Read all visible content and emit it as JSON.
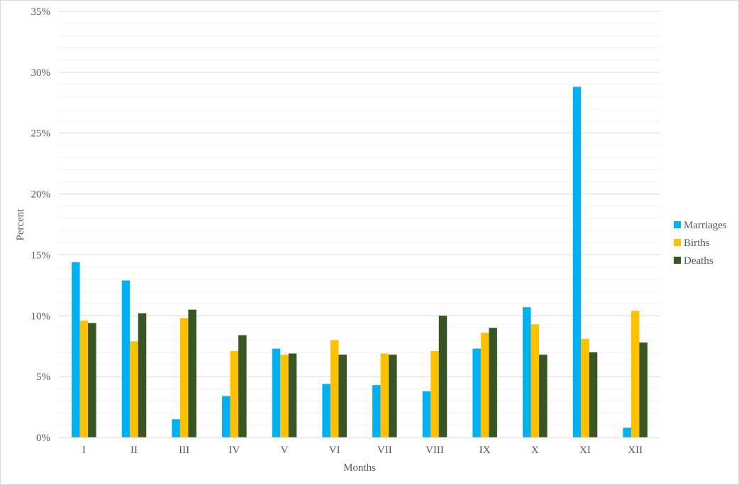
{
  "chart_data": {
    "type": "bar",
    "xlabel": "Months",
    "ylabel": "Percent",
    "ylim": [
      0,
      35
    ],
    "y_ticks": [
      0,
      5,
      10,
      15,
      20,
      25,
      30,
      35
    ],
    "y_tick_labels": [
      "0%",
      "5%",
      "10%",
      "15%",
      "20%",
      "25%",
      "30%",
      "35%"
    ],
    "grid": true,
    "legend_position": "right",
    "categories": [
      "I",
      "II",
      "III",
      "IV",
      "V",
      "VI",
      "VII",
      "VIII",
      "IX",
      "X",
      "XI",
      "XII"
    ],
    "series": [
      {
        "name": "Marriages",
        "color": "#00b0f0",
        "values": [
          14.4,
          12.9,
          1.5,
          3.4,
          7.3,
          4.4,
          4.3,
          3.8,
          7.3,
          10.7,
          28.8,
          0.8
        ]
      },
      {
        "name": "Births",
        "color": "#ffc000",
        "values": [
          9.6,
          7.9,
          9.8,
          7.1,
          6.8,
          8.0,
          6.9,
          7.1,
          8.6,
          9.3,
          8.1,
          10.4
        ]
      },
      {
        "name": "Deaths",
        "color": "#375623",
        "values": [
          9.4,
          10.2,
          10.5,
          8.4,
          6.9,
          6.8,
          6.8,
          10.0,
          9.0,
          6.8,
          7.0,
          7.8
        ]
      }
    ]
  }
}
